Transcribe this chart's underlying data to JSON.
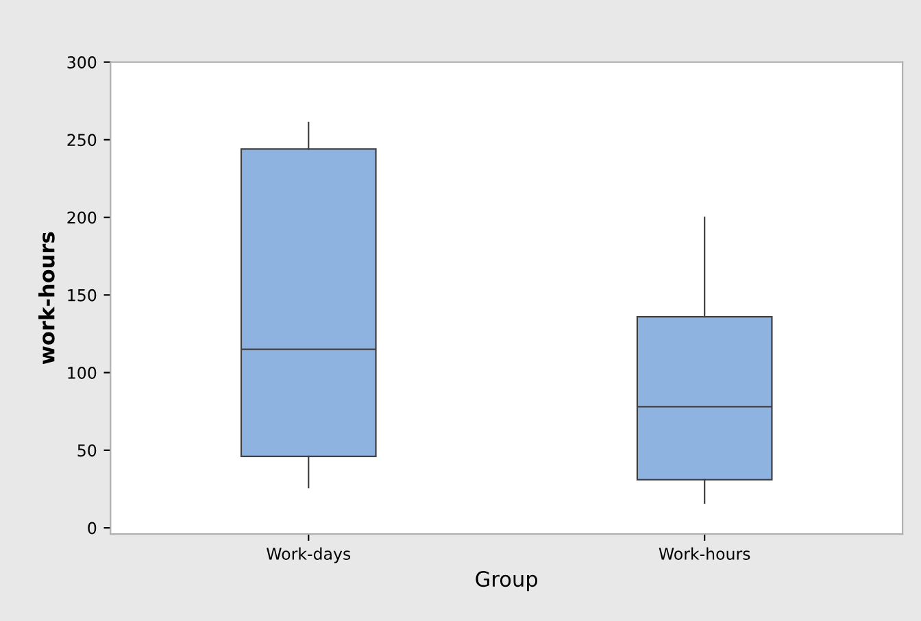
{
  "chart_data": {
    "type": "box",
    "xlabel": "Group",
    "ylabel": "work-hours",
    "categories": [
      "Work-days",
      "Work-hours"
    ],
    "boxes": [
      {
        "low": 26,
        "q1": 46,
        "median": 115,
        "q3": 244,
        "high": 261
      },
      {
        "low": 16,
        "q1": 31,
        "median": 78,
        "q3": 136,
        "high": 200
      }
    ],
    "color": "#8fb3e0",
    "ylim": [
      -4,
      300
    ],
    "yticks": [
      0,
      50,
      100,
      150,
      200,
      250,
      300
    ],
    "grid": false,
    "legend": false
  }
}
